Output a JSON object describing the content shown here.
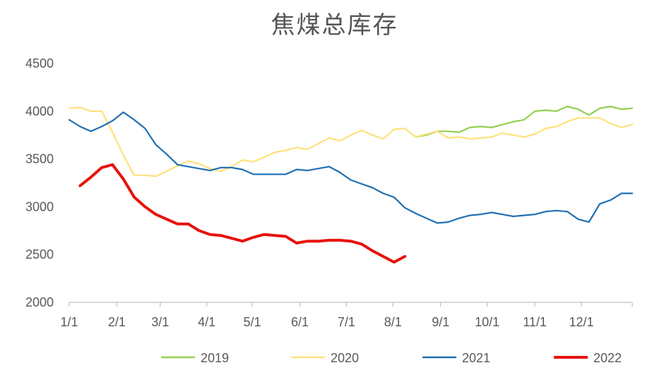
{
  "chart_data": {
    "type": "line",
    "title": "焦煤总库存",
    "xlabel": "",
    "ylabel": "",
    "ylim": [
      2000,
      4500
    ],
    "yticks": [
      2000,
      2500,
      3000,
      3500,
      4000,
      4500
    ],
    "xlim": [
      1,
      53
    ],
    "x_unit": "week of year",
    "x_tick_labels": [
      "1/1",
      "2/1",
      "3/1",
      "4/1",
      "5/1",
      "6/1",
      "7/1",
      "8/1",
      "9/1",
      "10/1",
      "11/1",
      "12/1"
    ],
    "x_tick_positions": [
      1,
      5.4,
      9.4,
      13.7,
      17.9,
      22.3,
      26.6,
      30.9,
      35.3,
      39.6,
      44,
      48.3
    ],
    "grid": false,
    "legend_position": "bottom",
    "series": [
      {
        "name": "2019",
        "color": "#92D050",
        "x": [
          33,
          34,
          35,
          36,
          37,
          38,
          39,
          40,
          41,
          42,
          43,
          44,
          45,
          46,
          47,
          48,
          49,
          50,
          51,
          52,
          53
        ],
        "y": [
          3730,
          3750,
          3790,
          3790,
          3780,
          3830,
          3840,
          3830,
          3860,
          3890,
          3910,
          4000,
          4010,
          4000,
          4050,
          4020,
          3960,
          4030,
          4050,
          4020,
          4030
        ]
      },
      {
        "name": "2020",
        "color": "#FFE07A",
        "x": [
          1,
          2,
          3,
          4,
          5,
          6,
          7,
          8,
          9,
          10,
          11,
          12,
          13,
          14,
          15,
          16,
          17,
          18,
          19,
          20,
          21,
          22,
          23,
          24,
          25,
          26,
          27,
          28,
          29,
          30,
          31,
          32,
          33,
          34,
          35,
          36,
          37,
          38,
          39,
          40,
          41,
          42,
          43,
          44,
          45,
          46,
          47,
          48,
          49,
          50,
          51,
          52,
          53
        ],
        "y": [
          4030,
          4040,
          4000,
          4000,
          3780,
          3540,
          3330,
          3330,
          3320,
          3370,
          3430,
          3480,
          3450,
          3400,
          3370,
          3420,
          3490,
          3470,
          3520,
          3570,
          3590,
          3620,
          3600,
          3660,
          3720,
          3690,
          3750,
          3800,
          3750,
          3710,
          3810,
          3820,
          3730,
          3760,
          3790,
          3720,
          3730,
          3710,
          3720,
          3730,
          3770,
          3750,
          3730,
          3760,
          3820,
          3840,
          3890,
          3930,
          3930,
          3930,
          3870,
          3830,
          3860
        ]
      },
      {
        "name": "2021",
        "color": "#1F6FB2",
        "x": [
          1,
          2,
          3,
          4,
          5,
          6,
          7,
          8,
          9,
          10,
          11,
          12,
          13,
          14,
          15,
          16,
          17,
          18,
          19,
          20,
          21,
          22,
          23,
          24,
          25,
          26,
          27,
          28,
          29,
          30,
          31,
          32,
          33,
          34,
          35,
          36,
          37,
          38,
          39,
          40,
          41,
          42,
          43,
          44,
          45,
          46,
          47,
          48,
          49,
          50,
          51,
          52,
          53
        ],
        "y": [
          3910,
          3840,
          3790,
          3840,
          3900,
          3990,
          3910,
          3820,
          3650,
          3550,
          3440,
          3420,
          3400,
          3380,
          3410,
          3410,
          3390,
          3340,
          3340,
          3340,
          3340,
          3390,
          3380,
          3400,
          3420,
          3360,
          3280,
          3240,
          3200,
          3140,
          3100,
          2990,
          2930,
          2880,
          2830,
          2840,
          2880,
          2910,
          2920,
          2940,
          2920,
          2900,
          2910,
          2920,
          2950,
          2960,
          2950,
          2870,
          2840,
          3030,
          3070,
          3140,
          3140
        ]
      },
      {
        "name": "2022",
        "color": "#E8120C",
        "x": [
          2,
          3,
          4,
          5,
          6,
          7,
          8,
          9,
          10,
          11,
          12,
          13,
          14,
          15,
          16,
          17,
          18,
          19,
          20,
          21,
          22,
          23,
          24,
          25,
          26,
          27,
          28,
          29,
          30,
          31,
          32
        ],
        "y": [
          3220,
          3310,
          3410,
          3440,
          3290,
          3100,
          3000,
          2920,
          2870,
          2820,
          2820,
          2750,
          2710,
          2700,
          2670,
          2640,
          2680,
          2710,
          2700,
          2690,
          2620,
          2640,
          2640,
          2650,
          2650,
          2640,
          2610,
          2540,
          2480,
          2420,
          2480
        ]
      }
    ]
  }
}
